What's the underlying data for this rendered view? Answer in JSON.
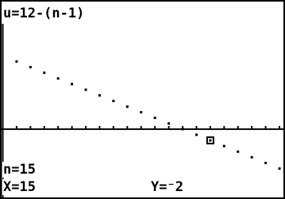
{
  "chart_data": {
    "type": "scatter",
    "title": "u=12-(n-1)",
    "x": [
      1,
      2,
      3,
      4,
      5,
      6,
      7,
      8,
      9,
      10,
      11,
      12,
      13,
      14,
      15,
      16,
      17,
      18,
      19,
      20
    ],
    "values": [
      12,
      11,
      10,
      9,
      8,
      7,
      6,
      5,
      4,
      3,
      2,
      1,
      0,
      -1,
      -2,
      -3,
      -4,
      -5,
      -6,
      -7
    ],
    "color": "#000000",
    "xlim": [
      -0.2,
      20.4
    ],
    "ylim": [
      -12.4,
      18.7
    ],
    "xticks": [
      1,
      2,
      3,
      4,
      5,
      6,
      7,
      8,
      9,
      10,
      11,
      12,
      13,
      14,
      15,
      16,
      17,
      18,
      19,
      20
    ],
    "trace_index": 14,
    "trace_labels": [
      "n=15",
      "X=15",
      "Y=⁻2"
    ]
  }
}
